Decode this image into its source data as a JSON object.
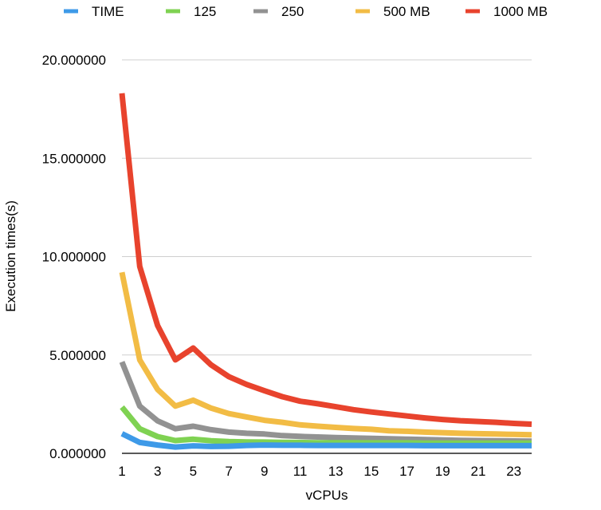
{
  "chart_data": {
    "type": "line",
    "title": "",
    "xlabel": "vCPUs",
    "ylabel": "Execution times(s)",
    "x": [
      1,
      2,
      3,
      4,
      5,
      6,
      7,
      8,
      9,
      10,
      11,
      12,
      13,
      14,
      15,
      16,
      17,
      18,
      19,
      20,
      21,
      22,
      23,
      24
    ],
    "x_tick_labels": [
      "1",
      "3",
      "5",
      "7",
      "9",
      "11",
      "13",
      "15",
      "17",
      "19",
      "21",
      "23"
    ],
    "y_tick_labels": [
      "0.000000",
      "5.000000",
      "10.000000",
      "15.000000",
      "20.000000"
    ],
    "ylim": [
      0,
      20
    ],
    "grid": true,
    "legend_position": "top",
    "series": [
      {
        "name": "TIME",
        "color": "#3e9ae8",
        "values": [
          1.0,
          0.55,
          0.42,
          0.32,
          0.38,
          0.35,
          0.36,
          0.4,
          0.42,
          0.41,
          0.41,
          0.4,
          0.4,
          0.4,
          0.4,
          0.4,
          0.4,
          0.39,
          0.39,
          0.39,
          0.39,
          0.39,
          0.39,
          0.39
        ]
      },
      {
        "name": "125",
        "color": "#7fd252",
        "values": [
          2.35,
          1.25,
          0.85,
          0.65,
          0.72,
          0.64,
          0.6,
          0.58,
          0.57,
          0.56,
          0.55,
          0.54,
          0.54,
          0.54,
          0.53,
          0.53,
          0.53,
          0.52,
          0.52,
          0.52,
          0.52,
          0.52,
          0.52,
          0.52
        ]
      },
      {
        "name": "250",
        "color": "#929292",
        "values": [
          4.65,
          2.4,
          1.65,
          1.25,
          1.38,
          1.2,
          1.08,
          1.02,
          0.98,
          0.9,
          0.86,
          0.83,
          0.8,
          0.78,
          0.76,
          0.74,
          0.72,
          0.7,
          0.68,
          0.66,
          0.65,
          0.64,
          0.63,
          0.62
        ]
      },
      {
        "name": "500 MB",
        "color": "#f2bc45",
        "values": [
          9.2,
          4.75,
          3.25,
          2.4,
          2.7,
          2.3,
          2.02,
          1.85,
          1.68,
          1.58,
          1.45,
          1.38,
          1.32,
          1.26,
          1.22,
          1.15,
          1.12,
          1.08,
          1.05,
          1.02,
          1.0,
          0.98,
          0.96,
          0.94
        ]
      },
      {
        "name": "1000 MB",
        "color": "#e8432d",
        "values": [
          18.3,
          9.5,
          6.5,
          4.75,
          5.35,
          4.5,
          3.9,
          3.5,
          3.18,
          2.88,
          2.65,
          2.52,
          2.37,
          2.22,
          2.1,
          2.0,
          1.9,
          1.8,
          1.72,
          1.66,
          1.62,
          1.58,
          1.52,
          1.48
        ]
      }
    ]
  }
}
